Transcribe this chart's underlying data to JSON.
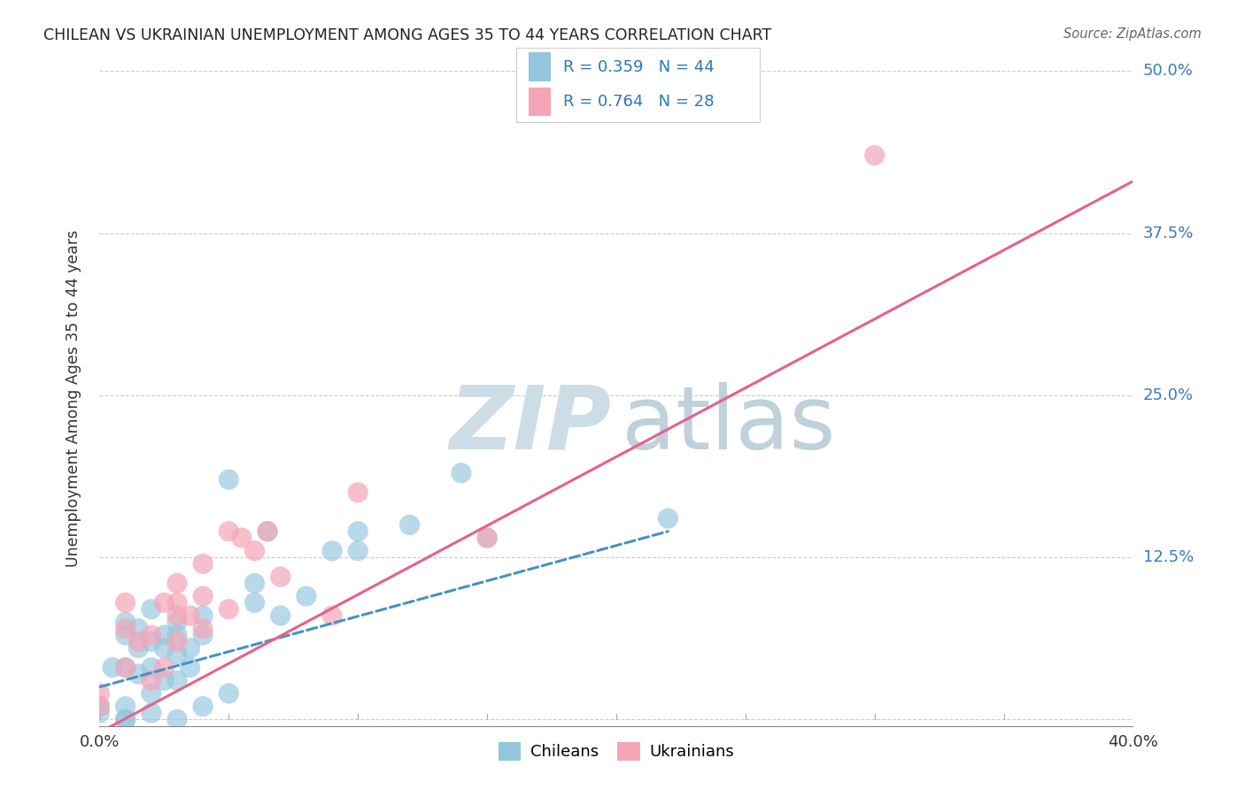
{
  "title": "CHILEAN VS UKRAINIAN UNEMPLOYMENT AMONG AGES 35 TO 44 YEARS CORRELATION CHART",
  "source": "Source: ZipAtlas.com",
  "ylabel": "Unemployment Among Ages 35 to 44 years",
  "xlim": [
    0.0,
    0.4
  ],
  "ylim": [
    -0.005,
    0.5
  ],
  "xticks": [
    0.0,
    0.05,
    0.1,
    0.15,
    0.2,
    0.25,
    0.3,
    0.35,
    0.4
  ],
  "yticks": [
    0.0,
    0.125,
    0.25,
    0.375,
    0.5
  ],
  "ytick_labels": [
    "",
    "12.5%",
    "25.0%",
    "37.5%",
    "50.0%"
  ],
  "chilean_R": 0.359,
  "chilean_N": 44,
  "ukrainian_R": 0.764,
  "ukrainian_N": 28,
  "chilean_color": "#92c5de",
  "ukrainian_color": "#f4a5b8",
  "chilean_line_color": "#4393c3",
  "ukrainian_line_color": "#e8608a",
  "background_color": "#ffffff",
  "grid_color": "#cccccc",
  "chilean_line_x0": 0.0,
  "chilean_line_y0": 0.025,
  "chilean_line_x1": 0.22,
  "chilean_line_y1": 0.145,
  "ukrainian_line_x0": 0.0,
  "ukrainian_line_y0": -0.01,
  "ukrainian_line_x1": 0.4,
  "ukrainian_line_y1": 0.415,
  "chileans_x": [
    0.0,
    0.0,
    0.005,
    0.01,
    0.01,
    0.01,
    0.01,
    0.01,
    0.01,
    0.015,
    0.015,
    0.015,
    0.02,
    0.02,
    0.02,
    0.02,
    0.02,
    0.025,
    0.025,
    0.025,
    0.03,
    0.03,
    0.03,
    0.03,
    0.03,
    0.035,
    0.035,
    0.04,
    0.04,
    0.04,
    0.05,
    0.05,
    0.06,
    0.06,
    0.065,
    0.07,
    0.08,
    0.09,
    0.1,
    0.1,
    0.12,
    0.14,
    0.15,
    0.22
  ],
  "chileans_y": [
    0.005,
    0.01,
    0.04,
    0.0,
    0.0,
    0.01,
    0.04,
    0.065,
    0.075,
    0.035,
    0.055,
    0.07,
    0.005,
    0.02,
    0.04,
    0.06,
    0.085,
    0.03,
    0.055,
    0.065,
    0.0,
    0.03,
    0.05,
    0.065,
    0.075,
    0.04,
    0.055,
    0.01,
    0.065,
    0.08,
    0.02,
    0.185,
    0.09,
    0.105,
    0.145,
    0.08,
    0.095,
    0.13,
    0.13,
    0.145,
    0.15,
    0.19,
    0.14,
    0.155
  ],
  "ukrainians_x": [
    0.0,
    0.0,
    0.01,
    0.01,
    0.01,
    0.015,
    0.02,
    0.02,
    0.025,
    0.025,
    0.03,
    0.03,
    0.03,
    0.03,
    0.035,
    0.04,
    0.04,
    0.04,
    0.05,
    0.05,
    0.055,
    0.06,
    0.065,
    0.07,
    0.09,
    0.1,
    0.15,
    0.3
  ],
  "ukrainians_y": [
    0.01,
    0.02,
    0.04,
    0.07,
    0.09,
    0.06,
    0.03,
    0.065,
    0.04,
    0.09,
    0.06,
    0.08,
    0.09,
    0.105,
    0.08,
    0.07,
    0.095,
    0.12,
    0.085,
    0.145,
    0.14,
    0.13,
    0.145,
    0.11,
    0.08,
    0.175,
    0.14,
    0.435
  ]
}
